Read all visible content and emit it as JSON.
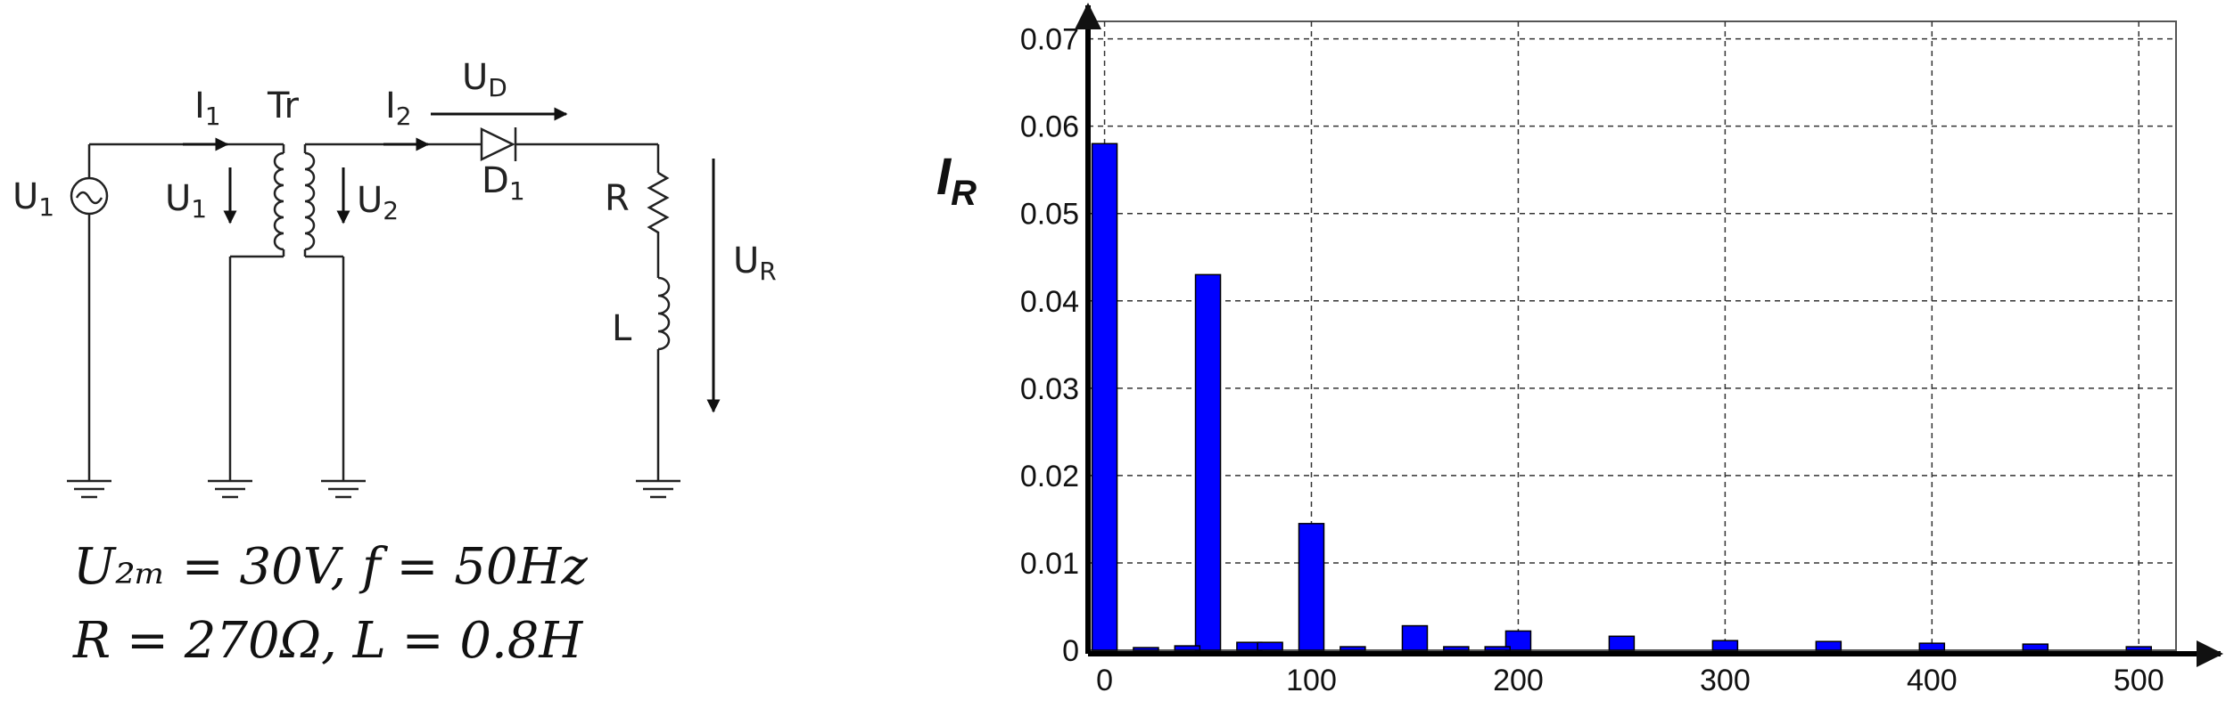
{
  "circuit": {
    "labels": {
      "source": "U",
      "source_sub": "1",
      "i1": "I",
      "i1_sub": "1",
      "tr": "Tr",
      "u1": "U",
      "u1_sub": "1",
      "i2": "I",
      "i2_sub": "2",
      "u2": "U",
      "u2_sub": "2",
      "ud": "U",
      "ud_sub": "D",
      "d1": "D",
      "d1_sub": "1",
      "r": "R",
      "ur": "U",
      "ur_sub": "R",
      "l": "L"
    },
    "formula_line1": "U₂ₘ = 30V, f = 50Hz",
    "formula_line2": "R = 270Ω, L = 0.8H"
  },
  "chart_data": {
    "type": "bar",
    "ylabel": "I",
    "ylabel_sub": "R",
    "xlim": [
      -8,
      518
    ],
    "ylim": [
      0,
      0.072
    ],
    "xticks": [
      0,
      100,
      200,
      300,
      400,
      500
    ],
    "yticks": [
      0,
      0.01,
      0.02,
      0.03,
      0.04,
      0.05,
      0.06,
      0.07
    ],
    "ytick_labels": [
      "0",
      "0.01",
      "0.02",
      "0.03",
      "0.04",
      "0.05",
      "0.06",
      "0.07"
    ],
    "grid": true,
    "bar_color": "#0000ff",
    "x": [
      0,
      50,
      100,
      150,
      200,
      250,
      300,
      350,
      400,
      450,
      500
    ],
    "values": [
      0.058,
      0.043,
      0.0145,
      0.0028,
      0.0022,
      0.0016,
      0.0011,
      0.001,
      0.0008,
      0.0007,
      0.0004
    ],
    "minor_x": [
      20,
      40,
      70,
      80,
      120,
      170,
      190
    ],
    "minor_values": [
      0.0003,
      0.0005,
      0.0009,
      0.0009,
      0.0004,
      0.0004,
      0.0004
    ]
  }
}
